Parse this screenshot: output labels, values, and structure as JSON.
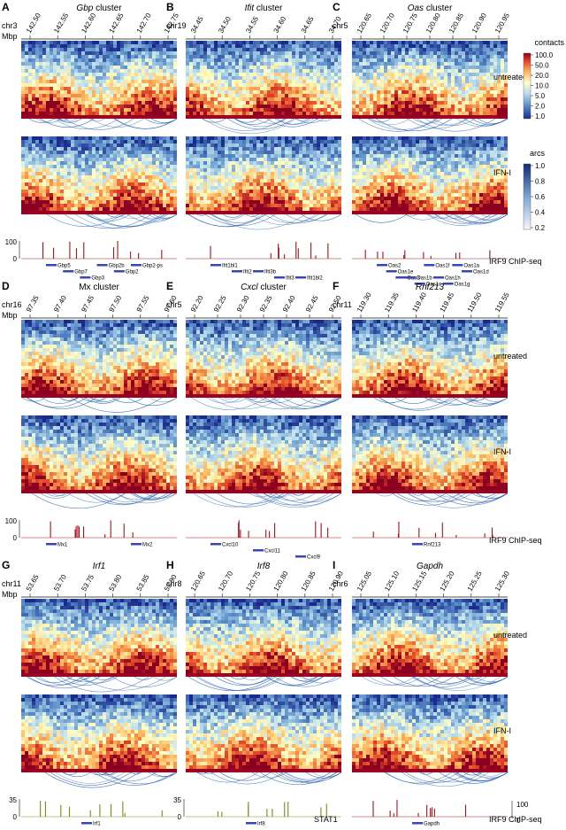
{
  "colors": {
    "heat_low": "#1a2a8c",
    "heat_mid": "#ffffcc",
    "heat_high": "#a50026",
    "arc": "#2c64b0",
    "chip_irf9": "#a0141e",
    "chip_stat1": "#7a8a14",
    "gene": "#3b46b0"
  },
  "row_labels": {
    "untreated": "untreated",
    "ifn": "IFN-I",
    "irf9": "IRF9 ChIP-seq",
    "stat1": "STAT1"
  },
  "legends": {
    "contacts_title": "contacts",
    "contacts_ticks": [
      "100.0",
      "50.0",
      "20.0",
      "10.0",
      "5.0",
      "2.0",
      "1.0"
    ],
    "arcs_title": "arcs",
    "arcs_ticks": [
      "1.0",
      "0.8",
      "0.6",
      "0.4",
      "0.2"
    ]
  },
  "panels": [
    {
      "letter": "A",
      "title_italic": "Gbp",
      "title_rest": " cluster",
      "chr": "chr3",
      "unit": "Mbp",
      "ticks": [
        "142.50",
        "142.55",
        "142.60",
        "142.65",
        "142.70",
        "142.75"
      ],
      "chip_scale": [
        "100",
        "0"
      ],
      "genes": [
        {
          "name": "Gbp5",
          "row": 0
        },
        {
          "name": "Gbp7",
          "row": 1
        },
        {
          "name": "Gbp3",
          "row": 2
        },
        {
          "name": "Gbp2b",
          "row": 0
        },
        {
          "name": "Gbp2",
          "row": 1
        },
        {
          "name": "Gbp2-ps",
          "row": 0
        }
      ]
    },
    {
      "letter": "B",
      "title_italic": "Ifit",
      "title_rest": " cluster",
      "chr": "chr19",
      "unit": "",
      "ticks": [
        "34.45",
        "34.50",
        "34.55",
        "34.60",
        "34.65",
        "34.70"
      ],
      "chip_scale": [],
      "genes": [
        {
          "name": "Ifit1bl1",
          "row": 0
        },
        {
          "name": "Ifit2",
          "row": 1
        },
        {
          "name": "Ifit3b",
          "row": 1
        },
        {
          "name": "Ifit3",
          "row": 2
        },
        {
          "name": "Ifit1bl2",
          "row": 2
        }
      ]
    },
    {
      "letter": "C",
      "title_italic": "Oas",
      "title_rest": " cluster",
      "chr": "chr5",
      "unit": "",
      "ticks": [
        "120.65",
        "120.70",
        "120.75",
        "120.80",
        "120.85",
        "120.90",
        "120.95"
      ],
      "chip_scale": [],
      "genes": [
        {
          "name": "Oas2",
          "row": 0
        },
        {
          "name": "Oas1e",
          "row": 1
        },
        {
          "name": "Oas3",
          "row": 2
        },
        {
          "name": "Oas1b",
          "row": 2
        },
        {
          "name": "Oas1c",
          "row": 3
        },
        {
          "name": "Oas1f",
          "row": 0
        },
        {
          "name": "Oas1h",
          "row": 2
        },
        {
          "name": "Oas1g",
          "row": 3
        },
        {
          "name": "Oas1a",
          "row": 0
        },
        {
          "name": "Oas1d",
          "row": 1
        }
      ]
    },
    {
      "letter": "D",
      "title_italic": "",
      "title_rest": "Mx cluster",
      "chr": "chr16",
      "unit": "Mbp",
      "ticks": [
        "97.35",
        "97.40",
        "97.45",
        "97.50",
        "97.55",
        "97.60"
      ],
      "chip_scale": [
        "100",
        "0"
      ],
      "genes": [
        {
          "name": "Mx1",
          "row": 0
        },
        {
          "name": "Mx2",
          "row": 0
        }
      ]
    },
    {
      "letter": "E",
      "title_italic": "Cxcl",
      "title_rest": " cluster",
      "chr": "chr5",
      "unit": "",
      "ticks": [
        "92.20",
        "92.25",
        "92.30",
        "92.35",
        "92.40",
        "92.45",
        "92.50"
      ],
      "chip_scale": [],
      "genes": [
        {
          "name": "Cxcl10",
          "row": 0
        },
        {
          "name": "Cxcl11",
          "row": 1
        },
        {
          "name": "Cxcl9",
          "row": 2
        }
      ]
    },
    {
      "letter": "F",
      "title_italic": "Rnf213",
      "title_rest": "",
      "chr": "chr11",
      "unit": "",
      "ticks": [
        "119.30",
        "119.35",
        "119.40",
        "119.45",
        "119.50",
        "119.55"
      ],
      "chip_scale": [],
      "genes": [
        {
          "name": "Rnf213",
          "row": 0
        }
      ]
    },
    {
      "letter": "G",
      "title_italic": "Irf1",
      "title_rest": "",
      "chr": "chr11",
      "unit": "Mbp",
      "ticks": [
        "53.65",
        "53.70",
        "53.75",
        "53.80",
        "53.85",
        "53.90"
      ],
      "chip_scale": [
        "35",
        "0"
      ],
      "genes": [
        {
          "name": "Irf1",
          "row": 0
        }
      ]
    },
    {
      "letter": "H",
      "title_italic": "Irf8",
      "title_rest": "",
      "chr": "chr8",
      "unit": "",
      "ticks": [
        "120.65",
        "120.70",
        "120.75",
        "120.80",
        "120.85",
        "120.90"
      ],
      "chip_scale": [
        "35",
        "0"
      ],
      "genes": [
        {
          "name": "Irf8",
          "row": 0
        }
      ]
    },
    {
      "letter": "I",
      "title_italic": "Gapdh",
      "title_rest": "",
      "chr": "chr6",
      "unit": "",
      "ticks": [
        "125.05",
        "125.10",
        "125.15",
        "125.20",
        "125.25",
        "125.30"
      ],
      "chip_scale": [],
      "genes": [
        {
          "name": "Gapdh",
          "row": 0
        }
      ]
    }
  ],
  "chipI_scale": [
    "100",
    "0"
  ]
}
